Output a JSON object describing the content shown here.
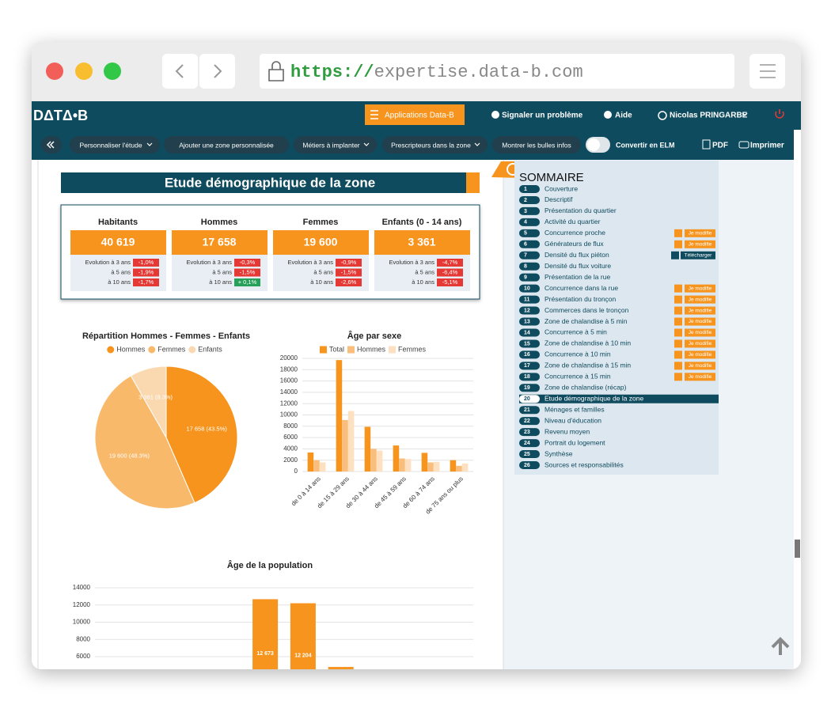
{
  "browser": {
    "url_scheme": "https://",
    "url_host": "expertise.data-b.com"
  },
  "navbar": {
    "logo": "DΔTΔ•B",
    "applications": "Applications Data-B",
    "report": "Signaler un problème",
    "help": "Aide",
    "user": "Nicolas PRINGARBE"
  },
  "toolbar": {
    "buttons": [
      "Personnaliser l'étude",
      "Ajouter une zone personnalisée",
      "Métiers à implanter",
      "Prescripteurs dans la zone",
      "Montrer les bulles infos"
    ],
    "elm": "Convertir en ELM",
    "pdf": "PDF",
    "print": "Imprimer"
  },
  "section_title": "Etude démographique de la zone",
  "stats": [
    {
      "label": "Habitants",
      "value": "40 619",
      "evolution": [
        {
          "label": "Evolution à 3 ans",
          "value": "-1,0%"
        },
        {
          "label": "à 5 ans",
          "value": "-1,9%"
        },
        {
          "label": "à 10 ans",
          "value": "-1,7%"
        }
      ]
    },
    {
      "label": "Hommes",
      "value": "17 658",
      "evolution": [
        {
          "label": "Evolution à 3 ans",
          "value": "-0,3%"
        },
        {
          "label": "à 5 ans",
          "value": "-1,5%"
        },
        {
          "label": "à 10 ans",
          "value": "+ 0,1%"
        }
      ]
    },
    {
      "label": "Femmes",
      "value": "19 600",
      "evolution": [
        {
          "label": "Evolution à 3 ans",
          "value": "-0,9%"
        },
        {
          "label": "à 5 ans",
          "value": "-1,5%"
        },
        {
          "label": "à 10 ans",
          "value": "-2,6%"
        }
      ]
    },
    {
      "label": "Enfants (0 - 14 ans)",
      "value": "3 361",
      "evolution": [
        {
          "label": "Evolution à 3 ans",
          "value": "-4,7%"
        },
        {
          "label": "à 5 ans",
          "value": "-6,4%"
        },
        {
          "label": "à 10 ans",
          "value": "-5,1%"
        }
      ]
    }
  ],
  "chart_data": [
    {
      "type": "pie",
      "title": "Répartition Hommes - Femmes - Enfants",
      "categories": [
        "Hommes",
        "Femmes",
        "Enfants"
      ],
      "values": [
        17658,
        19600,
        3361
      ],
      "value_labels": [
        "17 658 (43.5%)",
        "19 600 (48.3%)",
        "3 361 (8.3%)"
      ],
      "colors": [
        "#f7941d",
        "#f9b96b",
        "#fbd9b0"
      ],
      "legend": "top"
    },
    {
      "type": "bar",
      "title": "Âge par sexe",
      "categories": [
        "de 0 à 14 ans",
        "de 15 à 29 ans",
        "de 30 à 44 ans",
        "de 45 à 59 ans",
        "de 60 à 74 ans",
        "de 75 ans ou plus"
      ],
      "series": [
        {
          "name": "Total",
          "color": "#f7941d",
          "values": [
            3361,
            19700,
            7900,
            4600,
            3300,
            2000
          ]
        },
        {
          "name": "Hommes",
          "color": "#f9be7c",
          "values": [
            2000,
            9100,
            4000,
            2300,
            1600,
            1000
          ]
        },
        {
          "name": "Femmes",
          "color": "#fde0c0",
          "values": [
            1600,
            10700,
            3700,
            2200,
            1700,
            1400
          ]
        }
      ],
      "ylim": [
        0,
        20000
      ],
      "yticks": [
        0,
        2000,
        4000,
        6000,
        8000,
        10000,
        12000,
        14000,
        16000,
        18000,
        20000
      ],
      "grid": true,
      "legend": "top"
    },
    {
      "type": "bar",
      "title": "Âge de la population",
      "values": [
        12673,
        12204,
        4800
      ],
      "value_labels": [
        "12 673",
        "12 204",
        null
      ],
      "color": "#f7941d",
      "ylim": [
        0,
        14000
      ],
      "yticks": [
        6000,
        8000,
        10000,
        12000,
        14000
      ],
      "grid": true
    }
  ],
  "summary": {
    "title": "SOMMAIRE",
    "items": [
      {
        "number": "1",
        "label": "Couverture"
      },
      {
        "number": "2",
        "label": "Descriptif"
      },
      {
        "number": "3",
        "label": "Présentation du quartier"
      },
      {
        "number": "4",
        "label": "Activité du quartier"
      },
      {
        "number": "5",
        "label": "Concurrence proche",
        "action": "Je modifie"
      },
      {
        "number": "6",
        "label": "Générateurs de flux",
        "action": "Je modifie"
      },
      {
        "number": "7",
        "label": "Densité du flux piéton",
        "download": "Télécharger"
      },
      {
        "number": "8",
        "label": "Densité du flux voiture"
      },
      {
        "number": "9",
        "label": "Présentation de la rue"
      },
      {
        "number": "10",
        "label": "Concurrence dans la rue",
        "action": "Je modifie"
      },
      {
        "number": "11",
        "label": "Présentation du tronçon",
        "action": "Je modifie"
      },
      {
        "number": "12",
        "label": "Commerces dans le tronçon",
        "action": "Je modifie"
      },
      {
        "number": "13",
        "label": "Zone de chalandise à 5 min",
        "action": "Je modifie"
      },
      {
        "number": "14",
        "label": "Concurrence à 5 min",
        "action": "Je modifie"
      },
      {
        "number": "15",
        "label": "Zone de chalandise à 10 min",
        "action": "Je modifie"
      },
      {
        "number": "16",
        "label": "Concurrence à 10 min",
        "action": "Je modifie"
      },
      {
        "number": "17",
        "label": "Zone de chalandise à 15 min",
        "action": "Je modifie"
      },
      {
        "number": "18",
        "label": "Concurrence à 15 min",
        "action": "Je modifie"
      },
      {
        "number": "19",
        "label": "Zone de chalandise (récap)"
      },
      {
        "number": "20",
        "label": "Etude démographique de la zone",
        "active": true
      },
      {
        "number": "21",
        "label": "Ménages et familles"
      },
      {
        "number": "22",
        "label": "Niveau d'éducation"
      },
      {
        "number": "23",
        "label": "Revenu moyen"
      },
      {
        "number": "24",
        "label": "Portrait du logement"
      },
      {
        "number": "25",
        "label": "Synthèse"
      },
      {
        "number": "26",
        "label": "Sources et responsabilités"
      }
    ]
  }
}
